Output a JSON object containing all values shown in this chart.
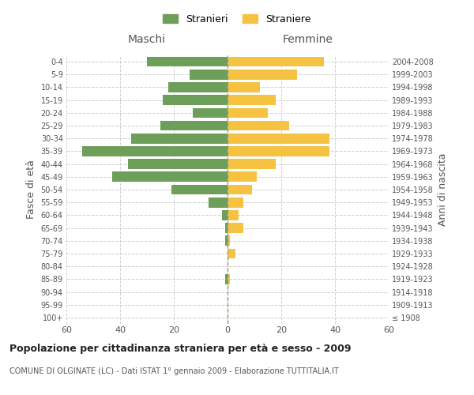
{
  "age_groups": [
    "100+",
    "95-99",
    "90-94",
    "85-89",
    "80-84",
    "75-79",
    "70-74",
    "65-69",
    "60-64",
    "55-59",
    "50-54",
    "45-49",
    "40-44",
    "35-39",
    "30-34",
    "25-29",
    "20-24",
    "15-19",
    "10-14",
    "5-9",
    "0-4"
  ],
  "birth_years": [
    "≤ 1908",
    "1909-1913",
    "1914-1918",
    "1919-1923",
    "1924-1928",
    "1929-1933",
    "1934-1938",
    "1939-1943",
    "1944-1948",
    "1949-1953",
    "1954-1958",
    "1959-1963",
    "1964-1968",
    "1969-1973",
    "1974-1978",
    "1979-1983",
    "1984-1988",
    "1989-1993",
    "1994-1998",
    "1999-2003",
    "2004-2008"
  ],
  "maschi": [
    0,
    0,
    0,
    1,
    0,
    0,
    1,
    1,
    2,
    7,
    21,
    43,
    37,
    54,
    36,
    25,
    13,
    24,
    22,
    14,
    30
  ],
  "femmine": [
    0,
    0,
    0,
    1,
    0,
    3,
    1,
    6,
    4,
    6,
    9,
    11,
    18,
    38,
    38,
    23,
    15,
    18,
    12,
    26,
    36
  ],
  "maschi_color": "#6d9e5a",
  "femmine_color": "#f5c242",
  "background_color": "#ffffff",
  "grid_color": "#cccccc",
  "title": "Popolazione per cittadinanza straniera per età e sesso - 2009",
  "subtitle": "COMUNE DI OLGINATE (LC) - Dati ISTAT 1° gennaio 2009 - Elaborazione TUTTITALIA.IT",
  "ylabel_left": "Fasce di età",
  "ylabel_right": "Anni di nascita",
  "header_left": "Maschi",
  "header_right": "Femmine",
  "legend_stranieri": "Stranieri",
  "legend_straniere": "Straniere",
  "xlim": 60
}
